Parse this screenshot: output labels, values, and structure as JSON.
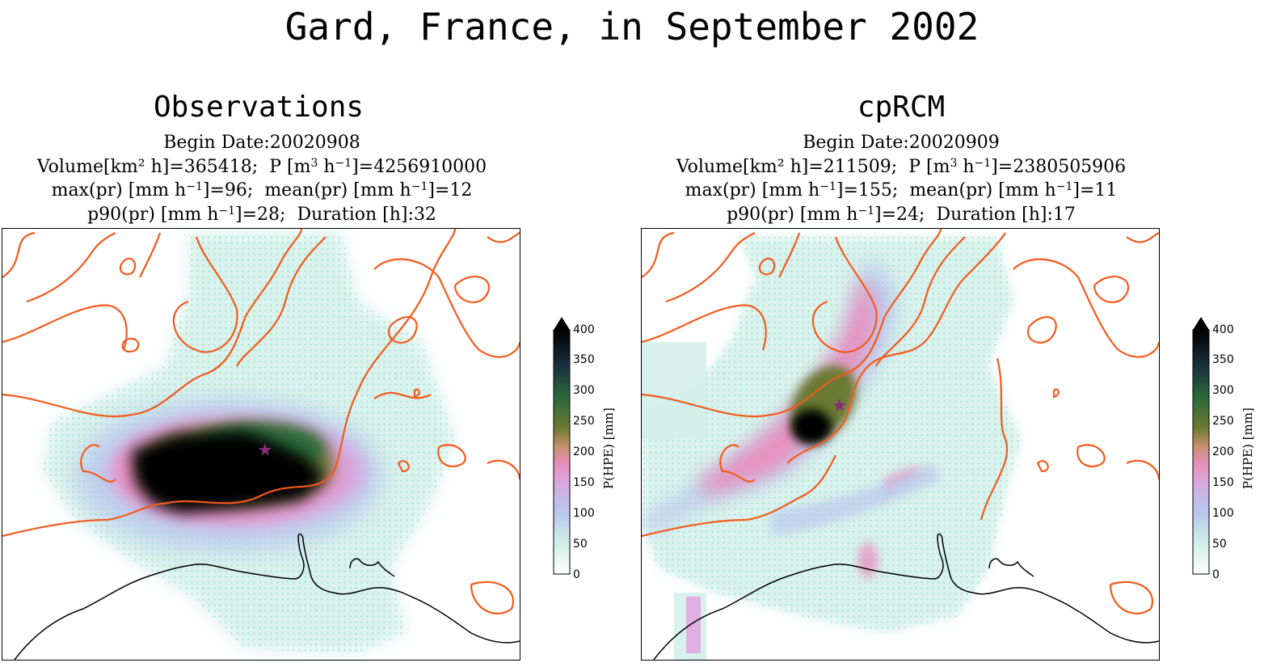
{
  "figure": {
    "title": "Gard, France, in September 2002"
  },
  "panels": [
    {
      "title": "Observations",
      "begin_date": "Begin Date:20020908",
      "volume": "365418",
      "p_total": "4256910000",
      "max_pr": "96",
      "mean_pr": "12",
      "p90_pr": "28",
      "duration": "32"
    },
    {
      "title": "cpRCM",
      "begin_date": "Begin Date:20020909",
      "volume": "211509",
      "p_total": "2380505906",
      "max_pr": "155",
      "mean_pr": "11",
      "p90_pr": "24",
      "duration": "17"
    }
  ],
  "labels": {
    "volume_prefix": "Volume[km² h]=",
    "p_prefix_a": "P [m",
    "p_prefix_b": " h",
    "p_prefix_c": "]=",
    "max_prefix_a": "max(pr) [mm h",
    "mean_prefix_a": "mean(pr) [mm h",
    "p90_prefix_a": "p90(pr) [mm h",
    "duration_prefix": "Duration [h]:",
    "exp3": "3",
    "exp_neg1": "−1"
  },
  "colorbar": {
    "label": "P(HPE) [mm]",
    "ticks": [
      "0",
      "50",
      "100",
      "150",
      "200",
      "250",
      "300",
      "350",
      "400"
    ],
    "colormap": [
      "#ffffff",
      "#d4f0ea",
      "#b8c8ee",
      "#d8a8e0",
      "#e890c0",
      "#c89070",
      "#6a7a30",
      "#2a6a3a",
      "#1a3040",
      "#000000"
    ]
  },
  "colors": {
    "contour": "#f25a1c",
    "coastline": "#000000",
    "stipple": "#7fd9b0",
    "event_star": "#8a2a7a"
  },
  "icons": {
    "event_marker": "star-icon",
    "colorbar_extend": "triangle-up-icon"
  }
}
